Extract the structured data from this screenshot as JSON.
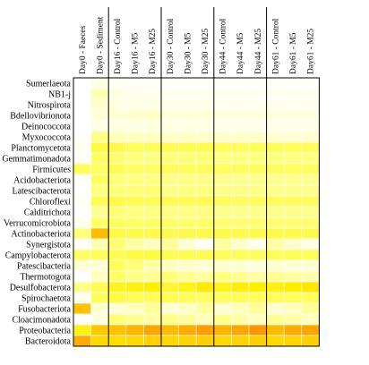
{
  "chart_data": {
    "type": "heatmap",
    "columns": [
      "Day0 - Faeces",
      "Day0 - Sediment",
      "Day16 - Control",
      "Day16 - M5",
      "Day16 - M25",
      "Day30 - Control",
      "Day30 - M5",
      "Day30 - M25",
      "Day44 - Control",
      "Day44 - M5",
      "Day44 - M25",
      "Day61 - Control",
      "Day61 - M5",
      "Day61 - M25"
    ],
    "column_groups": [
      2,
      5,
      8,
      11
    ],
    "rows": [
      "Sumerlaeota",
      "NB1-j",
      "Nitrospirota",
      "Bdellovibrionota",
      "Deinococcota",
      "Myxococcota",
      "Planctomycetota",
      "Gemmatimonadota",
      "Firmicutes",
      "Acidobacteriota",
      "Latescibacterota",
      "Chloroflexi",
      "Calditrichota",
      "Verrucomicrobiota",
      "Actinobacteriota",
      "Synergistota",
      "Campylobacterota",
      "Patescibacteria",
      "Thermotogota",
      "Desulfobacterota",
      "Spirochaetota",
      "Fusobacteriota",
      "Cloacimonadota",
      "Proteobacteria",
      "Bacteroidota"
    ],
    "values": [
      [
        0.0,
        0.08,
        0.04,
        0.03,
        0.03,
        0.02,
        0.02,
        0.02,
        0.02,
        0.02,
        0.02,
        0.02,
        0.02,
        0.02
      ],
      [
        0.0,
        0.18,
        0.07,
        0.06,
        0.06,
        0.05,
        0.05,
        0.05,
        0.04,
        0.04,
        0.04,
        0.04,
        0.04,
        0.04
      ],
      [
        0.0,
        0.14,
        0.08,
        0.07,
        0.07,
        0.06,
        0.06,
        0.06,
        0.05,
        0.05,
        0.05,
        0.05,
        0.05,
        0.05
      ],
      [
        0.0,
        0.12,
        0.12,
        0.14,
        0.15,
        0.1,
        0.11,
        0.11,
        0.09,
        0.09,
        0.1,
        0.09,
        0.09,
        0.09
      ],
      [
        0.0,
        0.07,
        0.07,
        0.08,
        0.08,
        0.07,
        0.07,
        0.07,
        0.06,
        0.06,
        0.06,
        0.06,
        0.06,
        0.06
      ],
      [
        0.02,
        0.24,
        0.17,
        0.16,
        0.16,
        0.15,
        0.15,
        0.15,
        0.14,
        0.14,
        0.14,
        0.13,
        0.13,
        0.13
      ],
      [
        0.03,
        0.33,
        0.32,
        0.3,
        0.3,
        0.31,
        0.31,
        0.31,
        0.3,
        0.3,
        0.3,
        0.3,
        0.3,
        0.3
      ],
      [
        0.02,
        0.29,
        0.27,
        0.26,
        0.25,
        0.26,
        0.26,
        0.26,
        0.25,
        0.25,
        0.25,
        0.25,
        0.25,
        0.25
      ],
      [
        0.3,
        0.29,
        0.31,
        0.29,
        0.29,
        0.3,
        0.3,
        0.3,
        0.3,
        0.3,
        0.3,
        0.3,
        0.3,
        0.3
      ],
      [
        0.01,
        0.29,
        0.26,
        0.25,
        0.25,
        0.24,
        0.24,
        0.24,
        0.23,
        0.23,
        0.23,
        0.23,
        0.23,
        0.23
      ],
      [
        0.01,
        0.25,
        0.26,
        0.26,
        0.27,
        0.24,
        0.25,
        0.25,
        0.24,
        0.24,
        0.24,
        0.23,
        0.23,
        0.23
      ],
      [
        0.03,
        0.31,
        0.32,
        0.31,
        0.31,
        0.31,
        0.31,
        0.31,
        0.3,
        0.3,
        0.3,
        0.3,
        0.3,
        0.3
      ],
      [
        0.01,
        0.22,
        0.26,
        0.25,
        0.25,
        0.24,
        0.24,
        0.24,
        0.23,
        0.23,
        0.23,
        0.23,
        0.23,
        0.23
      ],
      [
        0.05,
        0.28,
        0.29,
        0.28,
        0.28,
        0.28,
        0.28,
        0.28,
        0.27,
        0.27,
        0.27,
        0.27,
        0.27,
        0.27
      ],
      [
        0.26,
        0.62,
        0.33,
        0.32,
        0.32,
        0.32,
        0.32,
        0.32,
        0.32,
        0.32,
        0.32,
        0.32,
        0.32,
        0.32
      ],
      [
        0.02,
        0.18,
        0.27,
        0.2,
        0.16,
        0.22,
        0.12,
        0.04,
        0.21,
        0.14,
        0.05,
        0.2,
        0.14,
        0.08
      ],
      [
        0.29,
        0.3,
        0.31,
        0.33,
        0.34,
        0.31,
        0.31,
        0.31,
        0.3,
        0.3,
        0.3,
        0.3,
        0.3,
        0.3
      ],
      [
        0.12,
        0.12,
        0.3,
        0.26,
        0.2,
        0.16,
        0.14,
        0.12,
        0.14,
        0.12,
        0.1,
        0.14,
        0.12,
        0.12
      ],
      [
        0.0,
        0.16,
        0.28,
        0.24,
        0.22,
        0.26,
        0.22,
        0.2,
        0.25,
        0.22,
        0.19,
        0.22,
        0.2,
        0.18
      ],
      [
        0.24,
        0.31,
        0.38,
        0.4,
        0.42,
        0.36,
        0.39,
        0.44,
        0.39,
        0.42,
        0.43,
        0.4,
        0.43,
        0.46
      ],
      [
        0.05,
        0.3,
        0.33,
        0.31,
        0.3,
        0.31,
        0.3,
        0.29,
        0.3,
        0.3,
        0.3,
        0.3,
        0.3,
        0.3
      ],
      [
        0.6,
        0.12,
        0.12,
        0.16,
        0.22,
        0.12,
        0.16,
        0.22,
        0.13,
        0.17,
        0.22,
        0.13,
        0.17,
        0.22
      ],
      [
        0.0,
        0.1,
        0.26,
        0.22,
        0.2,
        0.24,
        0.21,
        0.17,
        0.23,
        0.2,
        0.16,
        0.22,
        0.19,
        0.16
      ],
      [
        0.4,
        0.58,
        0.6,
        0.64,
        0.68,
        0.62,
        0.66,
        0.7,
        0.64,
        0.68,
        0.72,
        0.62,
        0.66,
        0.68
      ],
      [
        0.66,
        0.52,
        0.5,
        0.52,
        0.55,
        0.52,
        0.54,
        0.56,
        0.52,
        0.54,
        0.56,
        0.52,
        0.54,
        0.56
      ]
    ],
    "value_scale": "relative abundance (0 = low, 1 = high)",
    "colormap": [
      "#ffffff",
      "#ffffcc",
      "#ffff66",
      "#ffee00",
      "#ffcc00",
      "#ff9900",
      "#ff5500",
      "#ee2200"
    ],
    "grid": true,
    "legend": "none"
  }
}
